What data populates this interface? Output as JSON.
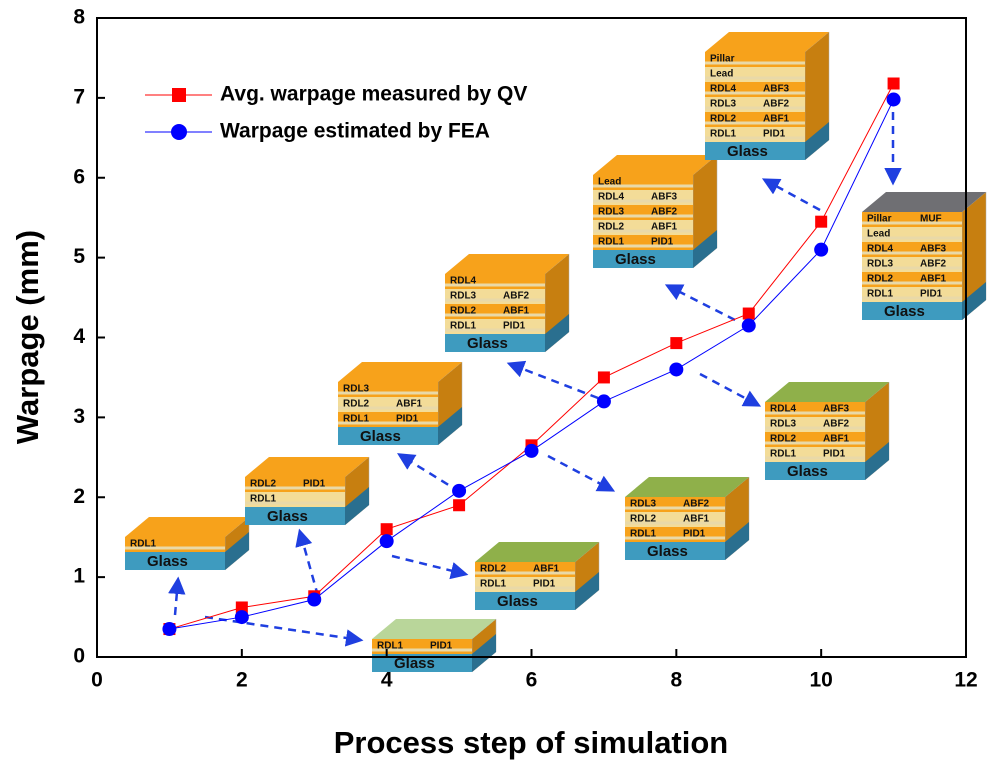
{
  "chart_data": {
    "type": "line",
    "xlabel": "Process step of simulation",
    "ylabel": "Warpage (mm)",
    "x": [
      1,
      2,
      3,
      4,
      5,
      6,
      7,
      8,
      9,
      10,
      11
    ],
    "series": [
      {
        "name": "Avg. warpage measured by QV",
        "color": "#ff0000",
        "marker": "square",
        "values": [
          0.35,
          0.62,
          0.76,
          1.6,
          1.9,
          2.65,
          3.5,
          3.93,
          4.3,
          5.45,
          7.18
        ]
      },
      {
        "name": "Warpage estimated by FEA",
        "color": "#0000ff",
        "marker": "circle",
        "values": [
          0.35,
          0.5,
          0.72,
          1.45,
          2.08,
          2.58,
          3.2,
          3.6,
          4.15,
          5.1,
          6.98
        ]
      }
    ],
    "xlim": [
      0,
      12
    ],
    "xticks": [
      0,
      2,
      4,
      6,
      8,
      10,
      12
    ],
    "ylim": [
      0,
      8
    ],
    "yticks": [
      0,
      1,
      2,
      3,
      4,
      5,
      6,
      7,
      8
    ],
    "insets": [
      {
        "rows": [
          [
            "RDL1"
          ]
        ],
        "base": "Glass"
      },
      {
        "rows": [
          [
            "RDL1",
            "PID1"
          ]
        ],
        "base": "Glass"
      },
      {
        "rows": [
          [
            "RDL2",
            "PID1"
          ],
          [
            "RDL1"
          ]
        ],
        "base": "Glass"
      },
      {
        "rows": [
          [
            "RDL2",
            "ABF1"
          ],
          [
            "RDL1",
            "PID1"
          ]
        ],
        "base": "Glass"
      },
      {
        "rows": [
          [
            "RDL3"
          ],
          [
            "RDL2",
            "ABF1"
          ],
          [
            "RDL1",
            "PID1"
          ]
        ],
        "base": "Glass"
      },
      {
        "rows": [
          [
            "RDL3",
            "ABF2"
          ],
          [
            "RDL2",
            "ABF1"
          ],
          [
            "RDL1",
            "PID1"
          ]
        ],
        "base": "Glass"
      },
      {
        "rows": [
          [
            "RDL4"
          ],
          [
            "RDL3",
            "ABF2"
          ],
          [
            "RDL2",
            "ABF1"
          ],
          [
            "RDL1",
            "PID1"
          ]
        ],
        "base": "Glass"
      },
      {
        "rows": [
          [
            "RDL4",
            "ABF3"
          ],
          [
            "RDL3",
            "ABF2"
          ],
          [
            "RDL2",
            "ABF1"
          ],
          [
            "RDL1",
            "PID1"
          ]
        ],
        "base": "Glass"
      },
      {
        "rows": [
          [
            "Lead"
          ],
          [
            "RDL4",
            "ABF3"
          ],
          [
            "RDL3",
            "ABF2"
          ],
          [
            "RDL2",
            "ABF1"
          ],
          [
            "RDL1",
            "PID1"
          ]
        ],
        "base": "Glass"
      },
      {
        "rows": [
          [
            "Pillar"
          ],
          [
            "Lead"
          ],
          [
            "RDL4",
            "ABF3"
          ],
          [
            "RDL3",
            "ABF2"
          ],
          [
            "RDL2",
            "ABF1"
          ],
          [
            "RDL1",
            "PID1"
          ]
        ],
        "base": "Glass"
      },
      {
        "rows": [
          [
            "Pillar",
            "MUF"
          ],
          [
            "Lead"
          ],
          [
            "RDL4",
            "ABF3"
          ],
          [
            "RDL3",
            "ABF2"
          ],
          [
            "RDL2",
            "ABF1"
          ],
          [
            "RDL1",
            "PID1"
          ]
        ],
        "base": "Glass"
      }
    ]
  }
}
